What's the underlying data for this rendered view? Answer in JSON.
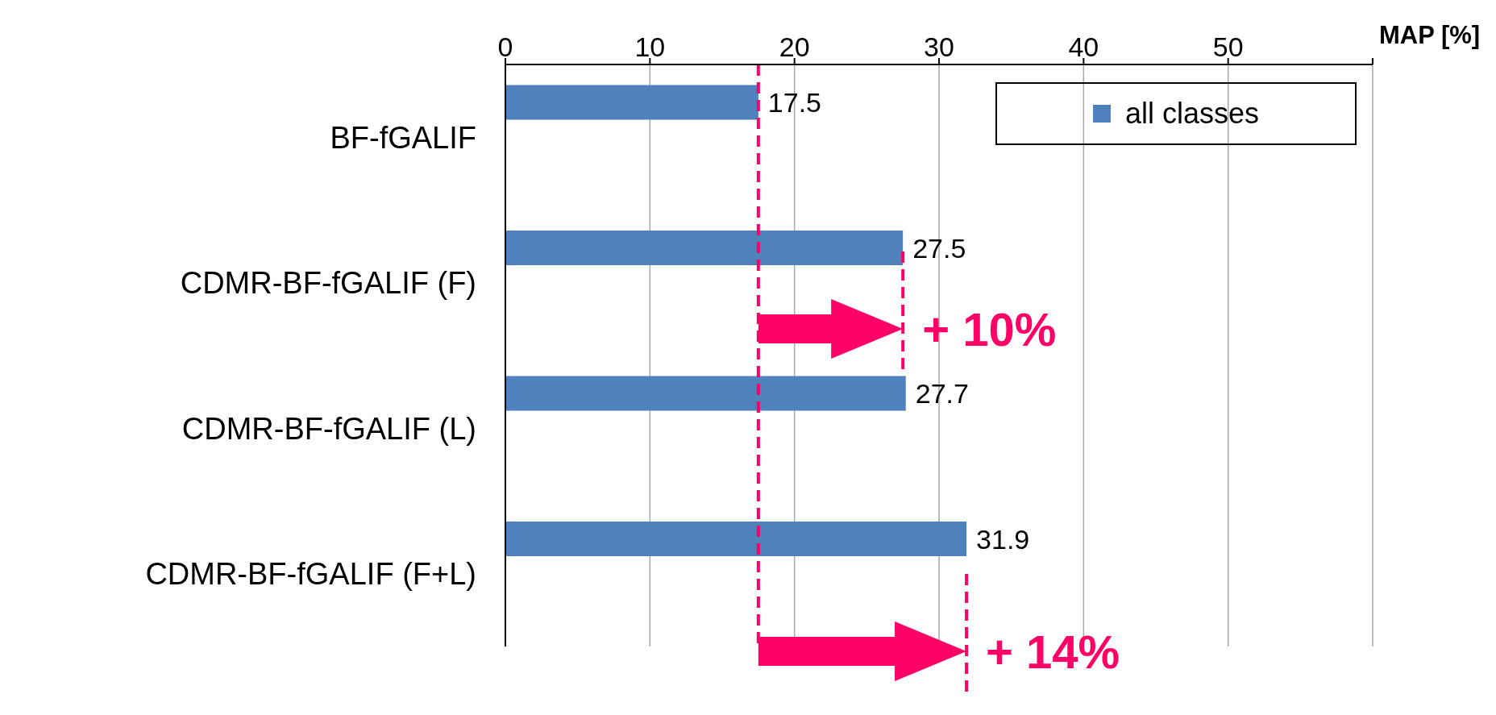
{
  "chart_data": {
    "type": "bar",
    "orientation": "horizontal",
    "xlabel": "MAP [%]",
    "categories": [
      "BF-fGALIF",
      "CDMR-BF-fGALIF (F)",
      "CDMR-BF-fGALIF (L)",
      "CDMR-BF-fGALIF (F+L)"
    ],
    "series": [
      {
        "name": "all classes",
        "color": "#4f81bd",
        "values": [
          17.5,
          27.5,
          27.7,
          31.9
        ]
      }
    ],
    "xlim": [
      0,
      60
    ],
    "xticks": [
      0,
      10,
      20,
      30,
      40,
      50,
      {
        "value": 60,
        "label": null
      }
    ],
    "grid": "x",
    "legend": "top right",
    "data_labels": true,
    "ref_lines": [
      {
        "axis": "x",
        "value": 17.5,
        "color": "#ff0066",
        "line_style": "dashed"
      },
      {
        "axis": "x",
        "value": 27.5,
        "color": "#ff0066",
        "line_style": "dashed"
      },
      {
        "axis": "x",
        "value": 31.9,
        "color": "#ff0066",
        "line_style": "dashed"
      }
    ],
    "annotations": [
      "+ 10%",
      "+ 14%"
    ]
  }
}
